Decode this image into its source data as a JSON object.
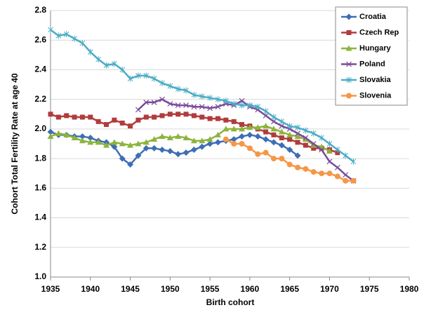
{
  "chart_data": {
    "type": "line",
    "x_label": "Birth cohort",
    "y_label": "Cohort Total Fertility Rate at age 40",
    "xlim": [
      1935,
      1980
    ],
    "xticks": [
      1935,
      1940,
      1945,
      1950,
      1955,
      1960,
      1965,
      1970,
      1975,
      1980
    ],
    "ylim": [
      1,
      2.8
    ],
    "yticks": [
      {
        "value": 1,
        "label": "1.0"
      },
      1.2,
      1.4,
      1.6,
      1.8,
      {
        "value": 2,
        "label": "2.0"
      },
      2.2,
      2.4,
      2.6,
      2.8
    ],
    "grid": true,
    "legend": "top-right",
    "series": [
      {
        "name": "Croatia",
        "color": "#3e6eb4",
        "marker": "diamond",
        "x": [
          1935,
          1936,
          1937,
          1938,
          1939,
          1940,
          1941,
          1942,
          1943,
          1944,
          1945,
          1946,
          1947,
          1948,
          1949,
          1950,
          1951,
          1952,
          1953,
          1954,
          1955,
          1956,
          1957,
          1958,
          1959,
          1960,
          1961,
          1962,
          1963,
          1964,
          1965,
          1966
        ],
        "values": [
          1.98,
          1.96,
          1.96,
          1.95,
          1.95,
          1.94,
          1.92,
          1.91,
          1.88,
          1.8,
          1.76,
          1.82,
          1.87,
          1.87,
          1.86,
          1.85,
          1.83,
          1.84,
          1.86,
          1.88,
          1.9,
          1.91,
          1.92,
          1.93,
          1.95,
          1.96,
          1.95,
          1.93,
          1.91,
          1.89,
          1.86,
          1.82
        ]
      },
      {
        "name": "Czech Rep",
        "color": "#b13c3c",
        "marker": "square",
        "x": [
          1935,
          1936,
          1937,
          1938,
          1939,
          1940,
          1941,
          1942,
          1943,
          1944,
          1945,
          1946,
          1947,
          1948,
          1949,
          1950,
          1951,
          1952,
          1953,
          1954,
          1955,
          1956,
          1957,
          1958,
          1959,
          1960,
          1961,
          1962,
          1963,
          1964,
          1965,
          1966,
          1967,
          1968,
          1969,
          1970,
          1971
        ],
        "values": [
          2.1,
          2.08,
          2.09,
          2.08,
          2.08,
          2.08,
          2.05,
          2.03,
          2.06,
          2.04,
          2.02,
          2.06,
          2.08,
          2.08,
          2.09,
          2.1,
          2.1,
          2.1,
          2.09,
          2.08,
          2.07,
          2.07,
          2.06,
          2.05,
          2.03,
          2.02,
          2.0,
          1.98,
          1.96,
          1.94,
          1.93,
          1.91,
          1.89,
          1.87,
          1.87,
          1.86,
          1.84
        ]
      },
      {
        "name": "Hungary",
        "color": "#8cb43c",
        "marker": "triangle",
        "x": [
          1935,
          1936,
          1937,
          1938,
          1939,
          1940,
          1941,
          1942,
          1943,
          1944,
          1945,
          1946,
          1947,
          1948,
          1949,
          1950,
          1951,
          1952,
          1953,
          1954,
          1955,
          1956,
          1957,
          1958,
          1959,
          1960,
          1961,
          1962,
          1963,
          1964,
          1965,
          1966,
          1967,
          1968,
          1969,
          1970
        ],
        "values": [
          1.95,
          1.97,
          1.96,
          1.94,
          1.92,
          1.91,
          1.91,
          1.89,
          1.91,
          1.9,
          1.89,
          1.9,
          1.91,
          1.93,
          1.95,
          1.94,
          1.95,
          1.94,
          1.92,
          1.92,
          1.93,
          1.96,
          2.0,
          2.0,
          2.0,
          2.01,
          2.01,
          2.02,
          2.0,
          1.98,
          1.96,
          1.95,
          1.93,
          1.89,
          1.88,
          1.85
        ]
      },
      {
        "name": "Poland",
        "color": "#7a4b9a",
        "marker": "x",
        "x": [
          1946,
          1947,
          1948,
          1949,
          1950,
          1951,
          1952,
          1953,
          1954,
          1955,
          1956,
          1957,
          1958,
          1959,
          1960,
          1961,
          1962,
          1963,
          1964,
          1965,
          1966,
          1967,
          1968,
          1969,
          1970,
          1971,
          1972,
          1973
        ],
        "values": [
          2.13,
          2.18,
          2.18,
          2.2,
          2.17,
          2.16,
          2.16,
          2.15,
          2.15,
          2.14,
          2.15,
          2.17,
          2.16,
          2.19,
          2.15,
          2.13,
          2.09,
          2.05,
          2.02,
          2.0,
          1.97,
          1.94,
          1.9,
          1.86,
          1.78,
          1.74,
          1.69,
          1.65
        ]
      },
      {
        "name": "Slovakia",
        "color": "#4bacc6",
        "marker": "star",
        "x": [
          1935,
          1936,
          1937,
          1938,
          1939,
          1940,
          1941,
          1942,
          1943,
          1944,
          1945,
          1946,
          1947,
          1948,
          1949,
          1950,
          1951,
          1952,
          1953,
          1954,
          1955,
          1956,
          1957,
          1958,
          1959,
          1960,
          1961,
          1962,
          1963,
          1964,
          1965,
          1966,
          1967,
          1968,
          1969,
          1970,
          1971,
          1972,
          1973
        ],
        "values": [
          2.67,
          2.63,
          2.64,
          2.61,
          2.58,
          2.52,
          2.47,
          2.43,
          2.44,
          2.4,
          2.34,
          2.36,
          2.36,
          2.34,
          2.31,
          2.29,
          2.27,
          2.26,
          2.23,
          2.22,
          2.21,
          2.2,
          2.19,
          2.17,
          2.16,
          2.16,
          2.15,
          2.12,
          2.08,
          2.05,
          2.02,
          2.01,
          1.99,
          1.97,
          1.94,
          1.9,
          1.86,
          1.82,
          1.78
        ]
      },
      {
        "name": "Slovenia",
        "color": "#f79646",
        "marker": "circle",
        "x": [
          1957,
          1958,
          1959,
          1960,
          1961,
          1962,
          1963,
          1964,
          1965,
          1966,
          1967,
          1968,
          1969,
          1970,
          1971,
          1972,
          1973
        ],
        "values": [
          1.93,
          1.9,
          1.9,
          1.87,
          1.83,
          1.84,
          1.8,
          1.8,
          1.76,
          1.74,
          1.73,
          1.71,
          1.7,
          1.7,
          1.68,
          1.65,
          1.65
        ]
      }
    ]
  }
}
